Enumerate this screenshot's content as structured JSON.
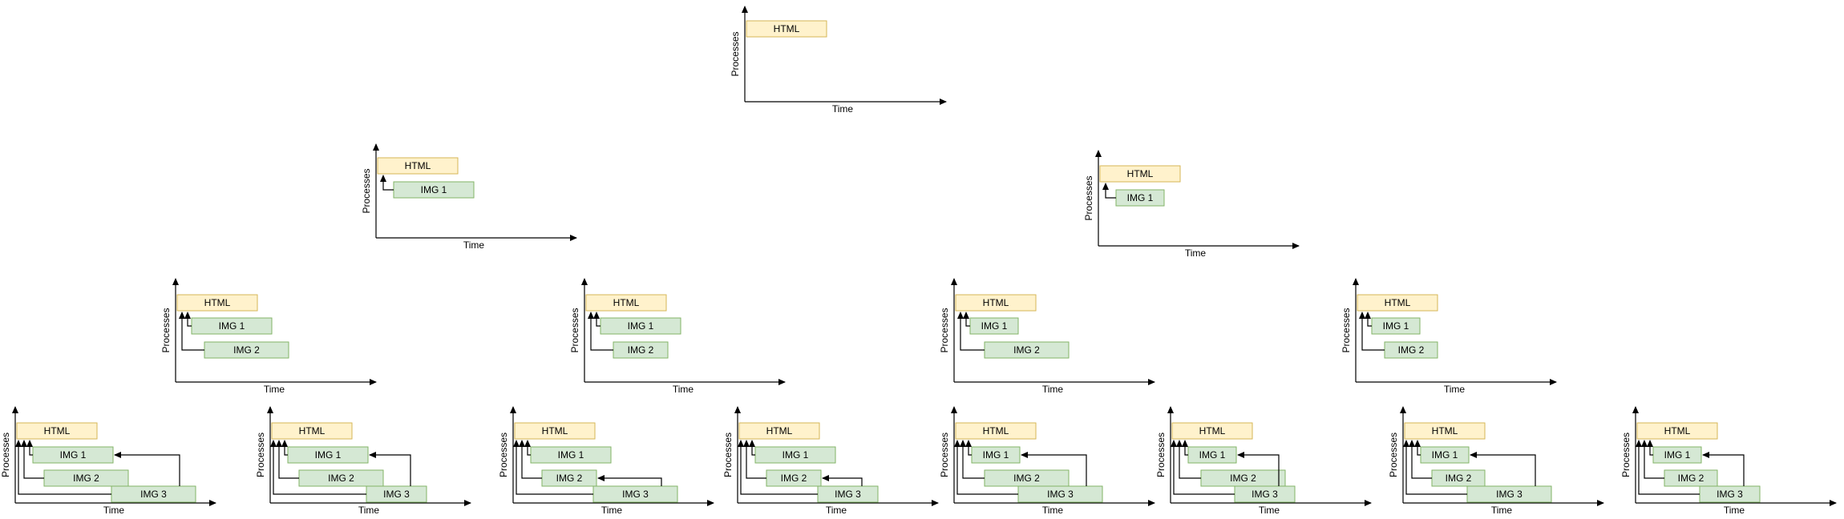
{
  "labels": {
    "html": "HTML",
    "img1": "IMG 1",
    "img2": "IMG 2",
    "img3": "IMG 3",
    "time": "Time",
    "processes": "Processes"
  },
  "colors": {
    "html_fill": "#fff2cc",
    "html_stroke": "#d6b656",
    "img_fill": "#d5e8d4",
    "img_stroke": "#82b366",
    "line": "#000000"
  },
  "diagrams": [
    {
      "boxes": [
        "html"
      ]
    },
    {
      "boxes": [
        "html",
        "img1"
      ]
    },
    {
      "boxes": [
        "html",
        "img1"
      ]
    },
    {
      "boxes": [
        "html",
        "img1",
        "img2"
      ]
    },
    {
      "boxes": [
        "html",
        "img1",
        "img2"
      ]
    },
    {
      "boxes": [
        "html",
        "img1",
        "img2"
      ]
    },
    {
      "boxes": [
        "html",
        "img1",
        "img2"
      ]
    },
    {
      "boxes": [
        "html",
        "img1",
        "img2",
        "img3"
      ]
    },
    {
      "boxes": [
        "html",
        "img1",
        "img2",
        "img3"
      ]
    },
    {
      "boxes": [
        "html",
        "img1",
        "img2",
        "img3"
      ]
    },
    {
      "boxes": [
        "html",
        "img1",
        "img2",
        "img3"
      ]
    },
    {
      "boxes": [
        "html",
        "img1",
        "img2",
        "img3"
      ]
    },
    {
      "boxes": [
        "html",
        "img1",
        "img2",
        "img3"
      ]
    },
    {
      "boxes": [
        "html",
        "img1",
        "img2",
        "img3"
      ]
    },
    {
      "boxes": [
        "html",
        "img1",
        "img2",
        "img3"
      ]
    }
  ]
}
